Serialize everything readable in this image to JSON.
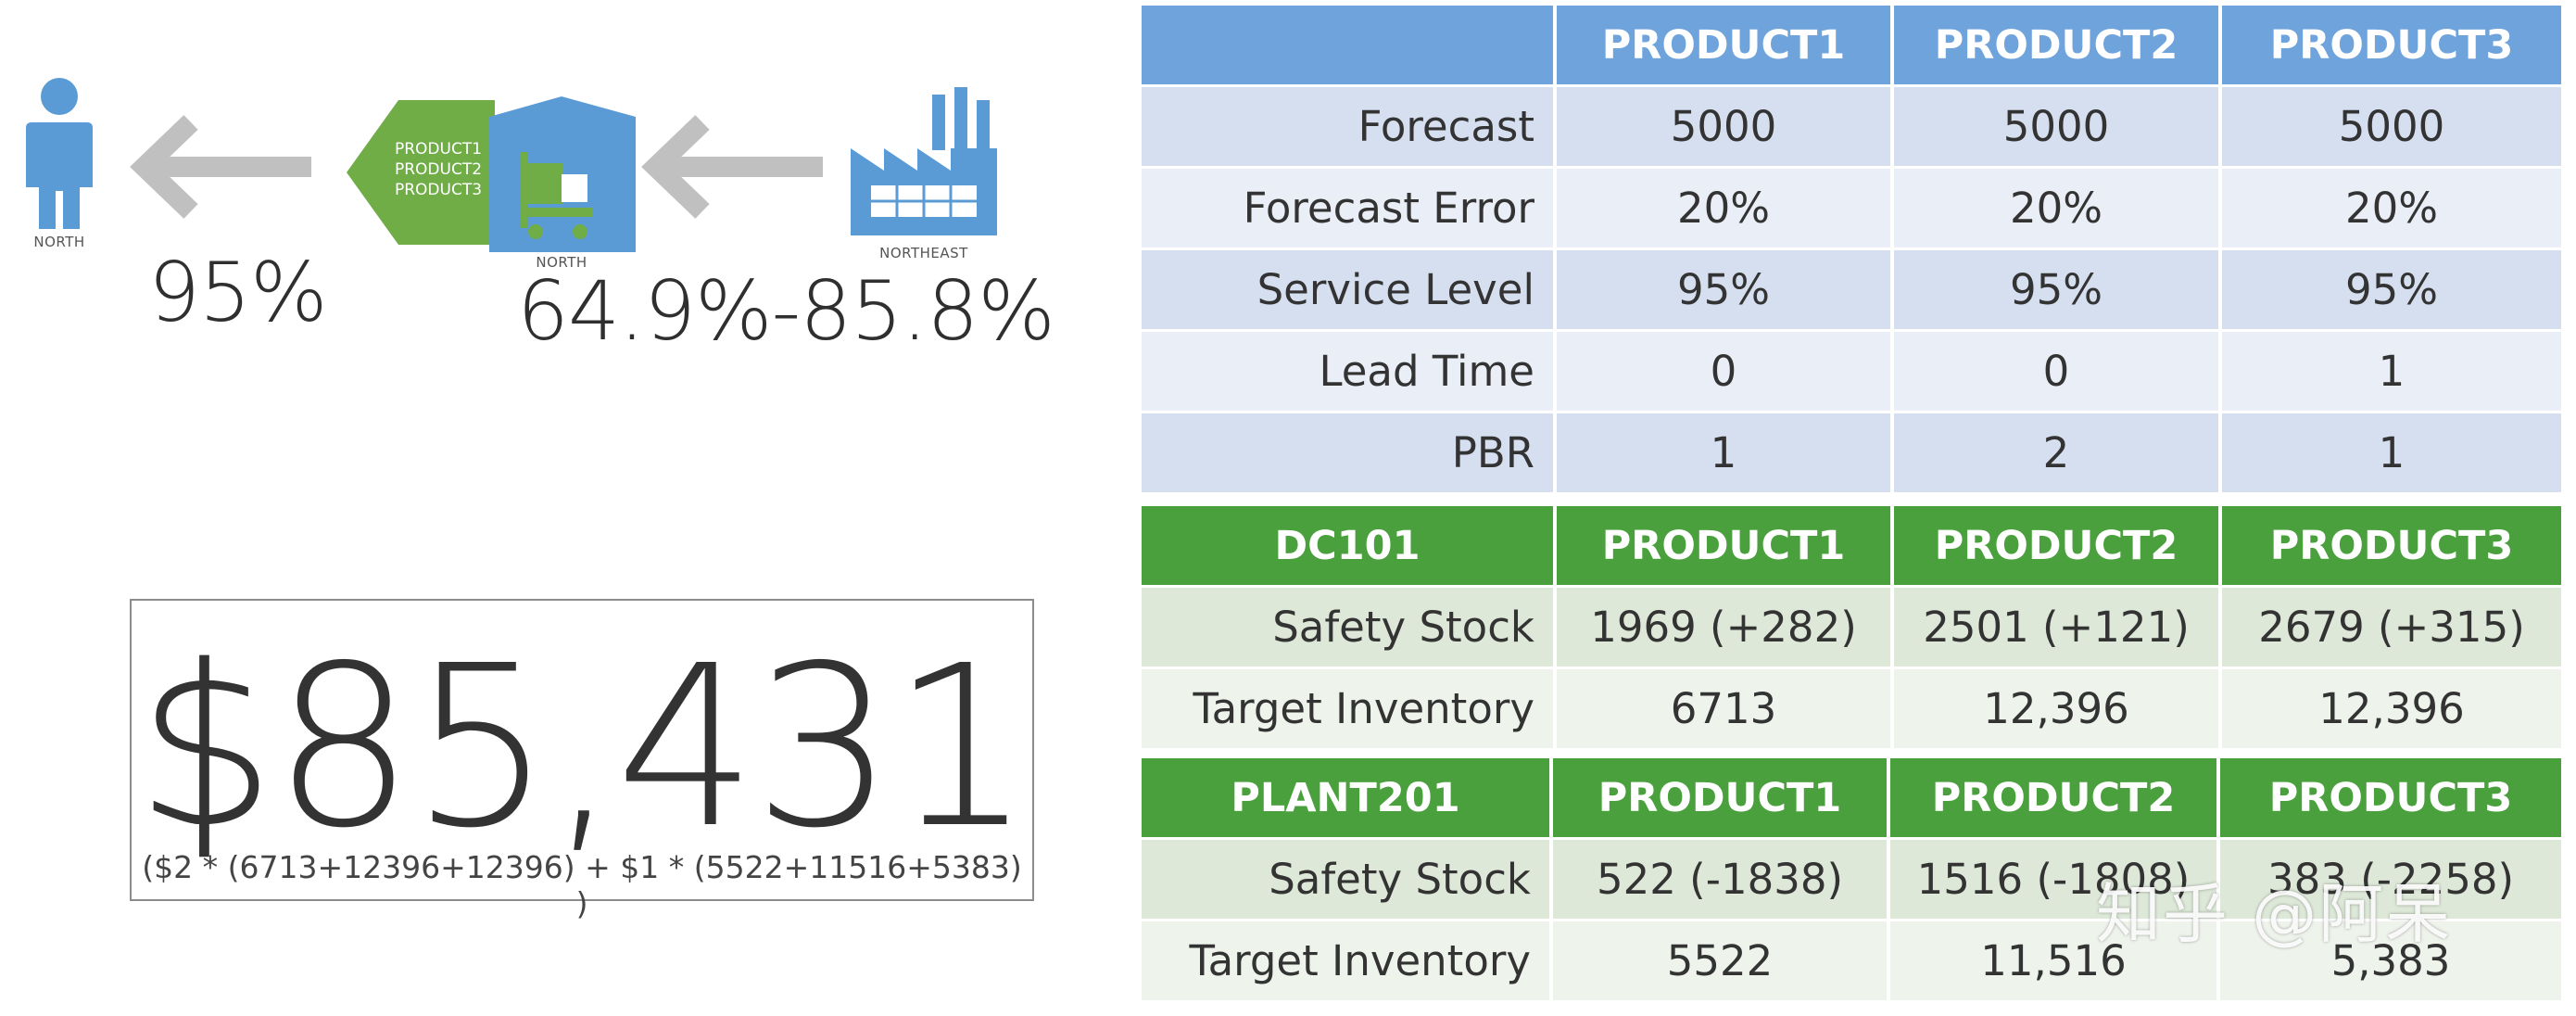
{
  "diagram": {
    "customer": {
      "label": "NORTH",
      "service_level": "95%"
    },
    "dc": {
      "label": "NORTH",
      "products": [
        "PRODUCT1",
        "PRODUCT2",
        "PRODUCT3"
      ],
      "service_level_range": "64.9%-85.8%"
    },
    "plant": {
      "label": "NORTHEAST"
    },
    "colors": {
      "blue": "#5b9bd5",
      "green": "#70ad47",
      "arrow": "#c0c0c0"
    },
    "icons": [
      "person-icon",
      "left-arrow-icon",
      "warehouse-icon",
      "factory-icon"
    ]
  },
  "cost": {
    "total": "$85,431",
    "formula": "($2 * (6713+12396+12396) + $1 * (5522+11516+5383) )"
  },
  "inputs_table": {
    "headers": [
      "",
      "PRODUCT1",
      "PRODUCT2",
      "PRODUCT3"
    ],
    "rows": [
      {
        "label": "Forecast",
        "values": [
          "5000",
          "5000",
          "5000"
        ]
      },
      {
        "label": "Forecast Error",
        "values": [
          "20%",
          "20%",
          "20%"
        ]
      },
      {
        "label": "Service Level",
        "values": [
          "95%",
          "95%",
          "95%"
        ]
      },
      {
        "label": "Lead Time",
        "values": [
          "0",
          "0",
          "1"
        ]
      },
      {
        "label": "PBR",
        "values": [
          "1",
          "2",
          "1"
        ]
      }
    ]
  },
  "dc_table": {
    "headers": [
      "DC101",
      "PRODUCT1",
      "PRODUCT2",
      "PRODUCT3"
    ],
    "rows": [
      {
        "label": "Safety Stock",
        "values": [
          "1969 (+282)",
          "2501 (+121)",
          "2679 (+315)"
        ]
      },
      {
        "label": "Target Inventory",
        "values": [
          "6713",
          "12,396",
          "12,396"
        ]
      }
    ]
  },
  "plant_table": {
    "headers": [
      "PLANT201",
      "PRODUCT1",
      "PRODUCT2",
      "PRODUCT3"
    ],
    "rows": [
      {
        "label": "Safety Stock",
        "values": [
          "522 (-1838)",
          "1516 (-1808)",
          "383 (-2258)"
        ]
      },
      {
        "label": "Target Inventory",
        "values": [
          "5522",
          "11,516",
          "5,383"
        ]
      }
    ]
  },
  "watermark": "知乎 @阿呆"
}
